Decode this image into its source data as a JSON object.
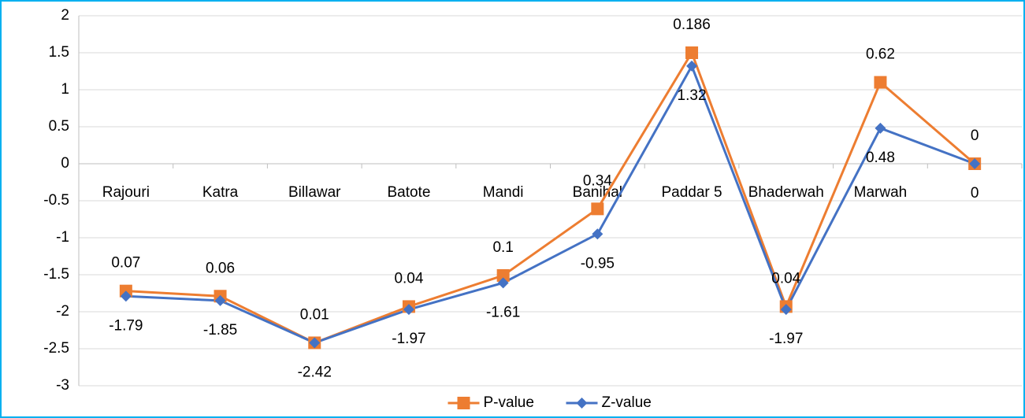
{
  "chart_data": {
    "type": "line",
    "categories": [
      "Rajouri",
      "Katra",
      "Billawar",
      "Batote",
      "Mandi",
      "Banihal",
      "Paddar 5",
      "Bhaderwah",
      "Marwah",
      null
    ],
    "series": [
      {
        "name": "P-value",
        "color": "#ED7D31",
        "marker": "square",
        "values": [
          -1.72,
          -1.79,
          -2.42,
          -1.93,
          -1.51,
          -0.61,
          1.5,
          -1.93,
          1.1,
          0
        ],
        "value_labels": [
          "0.07",
          "0.06",
          "0.01",
          "0.04",
          "0.1",
          "0.34",
          "0.186",
          "0.04",
          "0.62",
          "0"
        ]
      },
      {
        "name": "Z-value",
        "color": "#4472C4",
        "marker": "diamond",
        "values": [
          -1.79,
          -1.85,
          -2.42,
          -1.97,
          -1.61,
          -0.95,
          1.32,
          -1.97,
          0.48,
          0
        ]
      }
    ],
    "ylim": [
      -3,
      2
    ],
    "yticks": [
      -3,
      -2.5,
      -2,
      -1.5,
      -1,
      -0.5,
      0,
      0.5,
      1,
      1.5,
      2
    ],
    "grid": true,
    "legend": "bottom"
  }
}
